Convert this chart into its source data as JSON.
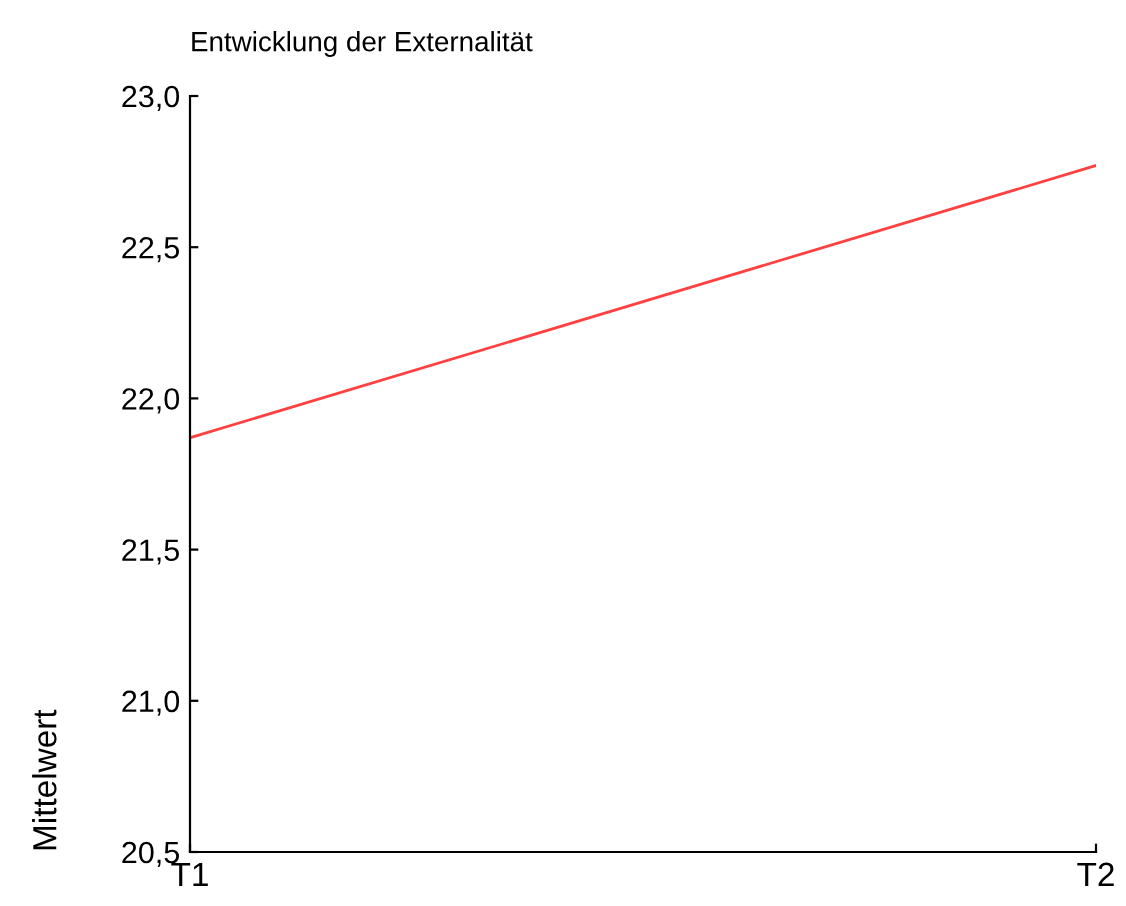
{
  "chart_data": {
    "type": "line",
    "title": "Entwicklung der Externalität",
    "ylabel": "Mittelwert",
    "categories": [
      "T1",
      "T2"
    ],
    "series": [
      {
        "color": "#ff4040",
        "values": [
          21.87,
          22.77
        ]
      }
    ],
    "ylim": [
      20.5,
      23.0
    ],
    "yticks": [
      {
        "value": 20.5,
        "label": "20,5"
      },
      {
        "value": 21.0,
        "label": "21,0"
      },
      {
        "value": 21.5,
        "label": "21,5"
      },
      {
        "value": 22.0,
        "label": "22,0"
      },
      {
        "value": 22.5,
        "label": "22,5"
      },
      {
        "value": 23.0,
        "label": "23,0"
      }
    ],
    "grid": false,
    "legend": false,
    "marker": "none",
    "line_style": "solid"
  }
}
